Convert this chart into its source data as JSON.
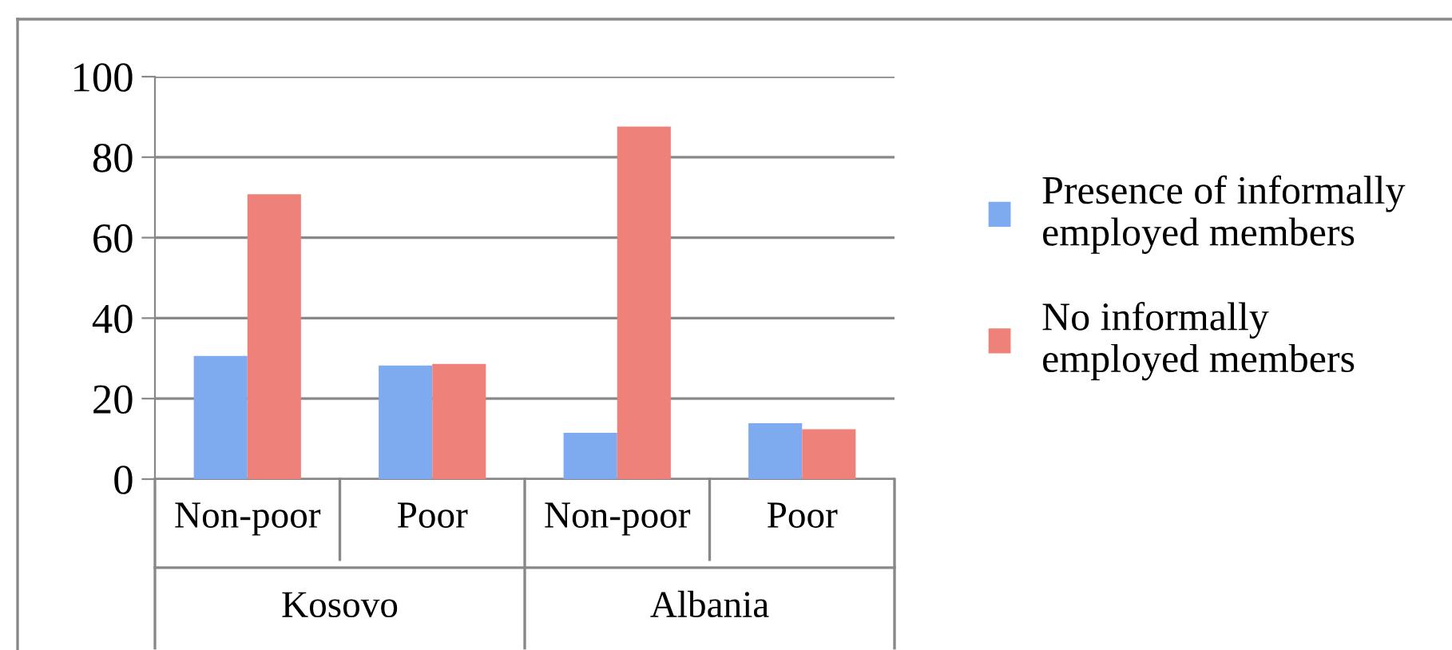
{
  "chart_data": {
    "type": "bar",
    "categories": [
      "Non-poor",
      "Poor",
      "Non-poor",
      "Poor"
    ],
    "series": [
      {
        "name": "Presence of informally employed members",
        "color": "#7eaaf0",
        "values": [
          30.6,
          28.2,
          11.5,
          13.9
        ]
      },
      {
        "name": "No informally employed members",
        "color": "#ee827a",
        "values": [
          70.8,
          28.6,
          87.6,
          12.4
        ]
      }
    ],
    "annotations": [
      "Kosovo",
      "Albania"
    ],
    "ylim": [
      0,
      100
    ],
    "yticks": [
      0,
      20,
      40,
      60,
      80,
      100
    ],
    "grid": "y",
    "legend": "right"
  }
}
